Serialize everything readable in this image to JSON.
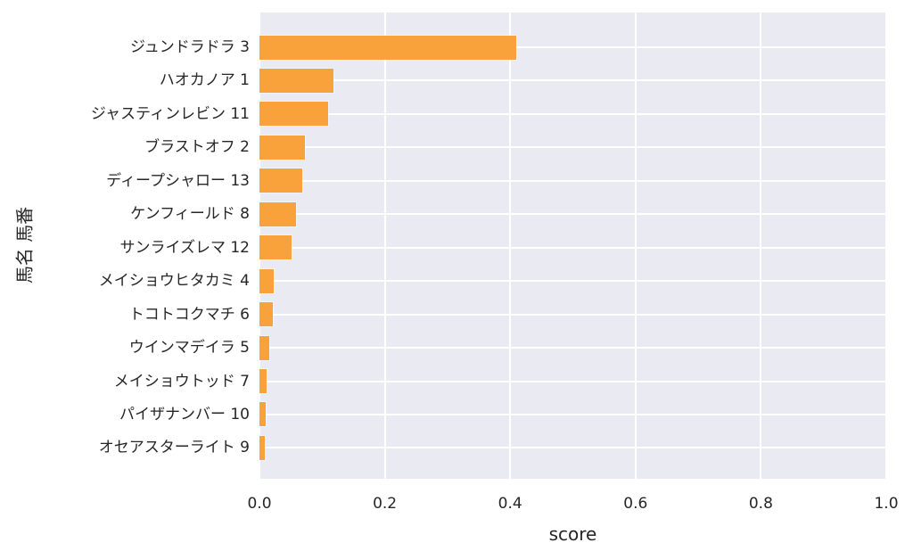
{
  "chart_data": {
    "type": "bar",
    "orientation": "horizontal",
    "title": "",
    "xlabel": "score",
    "ylabel": "馬名 馬番",
    "xlim": [
      0.0,
      1.0
    ],
    "xticks": [
      "0.0",
      "0.2",
      "0.4",
      "0.6",
      "0.8",
      "1.0"
    ],
    "grid": true,
    "legend": null,
    "categories": [
      "ジュンドラドラ 3",
      "ハオカノア 1",
      "ジャスティンレビン 11",
      "ブラストオフ 2",
      "ディープシャロー 13",
      "ケンフィールド 8",
      "サンライズレマ 12",
      "メイショウヒタカミ 4",
      "トコトコクマチ 6",
      "ウインマデイラ 5",
      "メイショウトッド 7",
      "パイザナンバー 10",
      "オセアスターライト 9"
    ],
    "values": [
      0.41,
      0.118,
      0.11,
      0.072,
      0.068,
      0.058,
      0.051,
      0.023,
      0.021,
      0.016,
      0.011,
      0.01,
      0.009
    ],
    "bar_color": "#F9A23C",
    "plot_bg": "#EAEAF2",
    "grid_color": "#FFFFFF",
    "text_color": "#262626"
  }
}
